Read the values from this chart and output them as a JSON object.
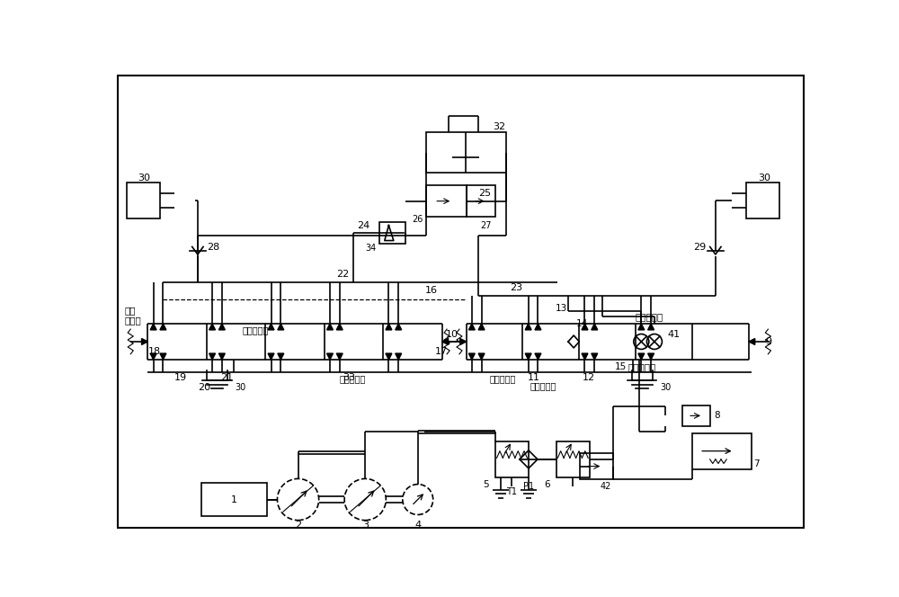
{
  "bg_color": "#ffffff",
  "line_color": "#000000",
  "fig_width": 10.0,
  "fig_height": 6.64,
  "border": [
    0.05,
    0.05,
    9.9,
    6.54
  ]
}
